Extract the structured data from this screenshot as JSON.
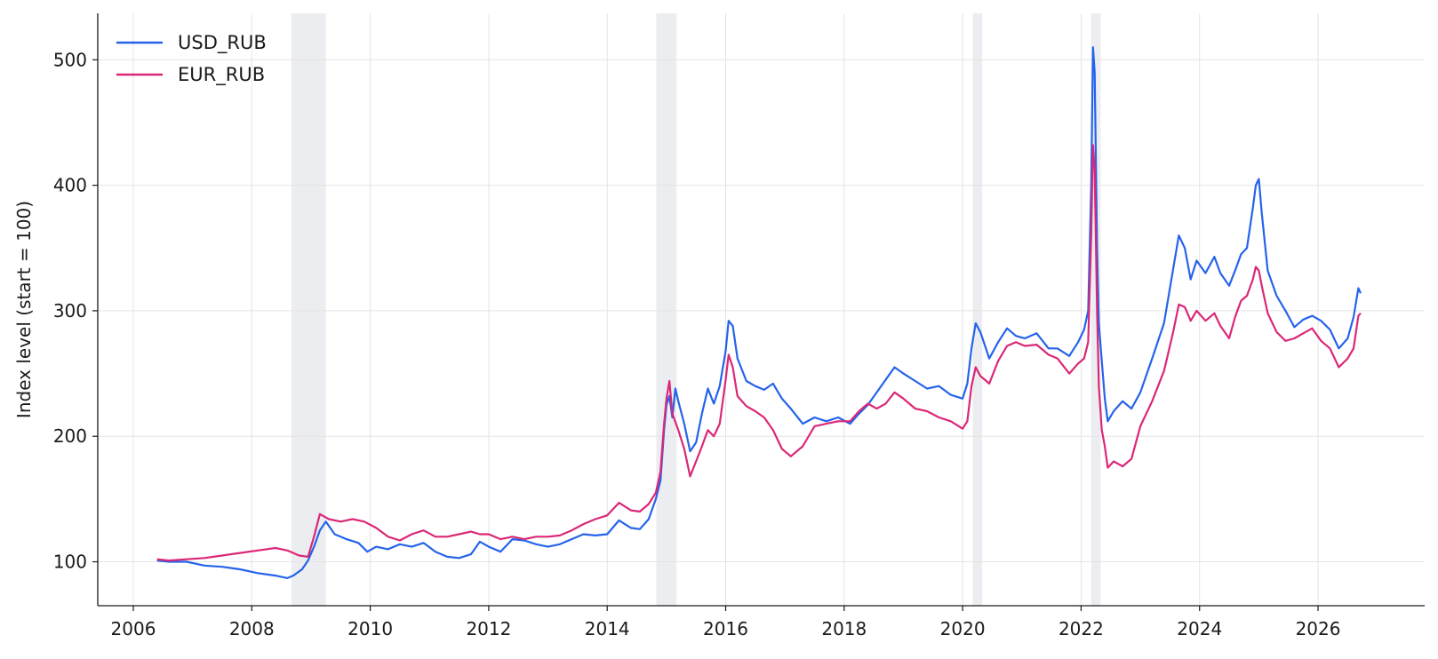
{
  "chart_data": {
    "type": "line",
    "title": "",
    "xlabel": "",
    "ylabel": "Index level (start = 100)",
    "xlim": [
      2005.4,
      2027.8
    ],
    "ylim": [
      65,
      537
    ],
    "x_ticks": [
      2006,
      2008,
      2010,
      2012,
      2014,
      2016,
      2018,
      2020,
      2022,
      2024,
      2026
    ],
    "y_ticks": [
      100,
      200,
      300,
      400,
      500
    ],
    "grid": true,
    "legend_position": "top-left",
    "shaded_periods": [
      [
        2008.67,
        2009.25
      ],
      [
        2014.83,
        2015.17
      ],
      [
        2020.17,
        2020.33
      ],
      [
        2022.17,
        2022.33
      ]
    ],
    "series": [
      {
        "name": "USD_RUB",
        "color": "#2563eb",
        "points": [
          [
            2006.4,
            101
          ],
          [
            2006.6,
            100
          ],
          [
            2006.9,
            100
          ],
          [
            2007.2,
            97
          ],
          [
            2007.5,
            96
          ],
          [
            2007.8,
            94
          ],
          [
            2008.1,
            91
          ],
          [
            2008.4,
            89
          ],
          [
            2008.6,
            87
          ],
          [
            2008.7,
            89
          ],
          [
            2008.85,
            94
          ],
          [
            2008.95,
            101
          ],
          [
            2009.05,
            112
          ],
          [
            2009.15,
            125
          ],
          [
            2009.25,
            132
          ],
          [
            2009.4,
            122
          ],
          [
            2009.6,
            118
          ],
          [
            2009.8,
            115
          ],
          [
            2009.95,
            108
          ],
          [
            2010.1,
            112
          ],
          [
            2010.3,
            110
          ],
          [
            2010.5,
            114
          ],
          [
            2010.7,
            112
          ],
          [
            2010.9,
            115
          ],
          [
            2011.1,
            108
          ],
          [
            2011.3,
            104
          ],
          [
            2011.5,
            103
          ],
          [
            2011.7,
            106
          ],
          [
            2011.85,
            116
          ],
          [
            2012.0,
            112
          ],
          [
            2012.2,
            108
          ],
          [
            2012.4,
            118
          ],
          [
            2012.6,
            117
          ],
          [
            2012.8,
            114
          ],
          [
            2013.0,
            112
          ],
          [
            2013.2,
            114
          ],
          [
            2013.4,
            118
          ],
          [
            2013.6,
            122
          ],
          [
            2013.8,
            121
          ],
          [
            2014.0,
            122
          ],
          [
            2014.2,
            133
          ],
          [
            2014.4,
            127
          ],
          [
            2014.55,
            126
          ],
          [
            2014.7,
            134
          ],
          [
            2014.82,
            150
          ],
          [
            2014.9,
            165
          ],
          [
            2014.96,
            205
          ],
          [
            2015.0,
            225
          ],
          [
            2015.05,
            232
          ],
          [
            2015.1,
            215
          ],
          [
            2015.15,
            238
          ],
          [
            2015.2,
            228
          ],
          [
            2015.3,
            210
          ],
          [
            2015.4,
            188
          ],
          [
            2015.5,
            195
          ],
          [
            2015.6,
            218
          ],
          [
            2015.7,
            238
          ],
          [
            2015.8,
            226
          ],
          [
            2015.9,
            240
          ],
          [
            2016.0,
            268
          ],
          [
            2016.05,
            292
          ],
          [
            2016.12,
            288
          ],
          [
            2016.2,
            262
          ],
          [
            2016.35,
            244
          ],
          [
            2016.5,
            240
          ],
          [
            2016.65,
            237
          ],
          [
            2016.8,
            242
          ],
          [
            2016.95,
            230
          ],
          [
            2017.1,
            222
          ],
          [
            2017.3,
            210
          ],
          [
            2017.5,
            215
          ],
          [
            2017.7,
            212
          ],
          [
            2017.9,
            215
          ],
          [
            2018.1,
            210
          ],
          [
            2018.25,
            218
          ],
          [
            2018.4,
            225
          ],
          [
            2018.55,
            235
          ],
          [
            2018.7,
            245
          ],
          [
            2018.85,
            255
          ],
          [
            2019.0,
            250
          ],
          [
            2019.2,
            244
          ],
          [
            2019.4,
            238
          ],
          [
            2019.6,
            240
          ],
          [
            2019.8,
            233
          ],
          [
            2020.0,
            230
          ],
          [
            2020.08,
            242
          ],
          [
            2020.15,
            270
          ],
          [
            2020.22,
            290
          ],
          [
            2020.3,
            283
          ],
          [
            2020.45,
            262
          ],
          [
            2020.6,
            275
          ],
          [
            2020.75,
            286
          ],
          [
            2020.9,
            280
          ],
          [
            2021.05,
            278
          ],
          [
            2021.25,
            282
          ],
          [
            2021.45,
            270
          ],
          [
            2021.6,
            270
          ],
          [
            2021.8,
            264
          ],
          [
            2021.95,
            275
          ],
          [
            2022.05,
            285
          ],
          [
            2022.12,
            300
          ],
          [
            2022.17,
            400
          ],
          [
            2022.2,
            510
          ],
          [
            2022.23,
            490
          ],
          [
            2022.27,
            350
          ],
          [
            2022.3,
            290
          ],
          [
            2022.35,
            260
          ],
          [
            2022.4,
            230
          ],
          [
            2022.45,
            212
          ],
          [
            2022.55,
            220
          ],
          [
            2022.7,
            228
          ],
          [
            2022.85,
            222
          ],
          [
            2023.0,
            235
          ],
          [
            2023.2,
            262
          ],
          [
            2023.4,
            290
          ],
          [
            2023.55,
            332
          ],
          [
            2023.65,
            360
          ],
          [
            2023.75,
            350
          ],
          [
            2023.85,
            325
          ],
          [
            2023.95,
            340
          ],
          [
            2024.1,
            330
          ],
          [
            2024.25,
            343
          ],
          [
            2024.35,
            330
          ],
          [
            2024.5,
            320
          ],
          [
            2024.6,
            332
          ],
          [
            2024.7,
            345
          ],
          [
            2024.8,
            350
          ],
          [
            2024.9,
            382
          ],
          [
            2024.95,
            400
          ],
          [
            2025.0,
            405
          ],
          [
            2025.05,
            378
          ],
          [
            2025.15,
            332
          ],
          [
            2025.3,
            312
          ],
          [
            2025.45,
            300
          ],
          [
            2025.6,
            287
          ],
          [
            2025.75,
            293
          ],
          [
            2025.9,
            296
          ],
          [
            2026.05,
            292
          ],
          [
            2026.2,
            285
          ],
          [
            2026.35,
            270
          ],
          [
            2026.5,
            278
          ],
          [
            2026.6,
            295
          ],
          [
            2026.68,
            318
          ],
          [
            2026.72,
            314
          ]
        ]
      },
      {
        "name": "EUR_RUB",
        "color": "#db2777",
        "points": [
          [
            2006.4,
            102
          ],
          [
            2006.6,
            101
          ],
          [
            2006.9,
            102
          ],
          [
            2007.2,
            103
          ],
          [
            2007.5,
            105
          ],
          [
            2007.8,
            107
          ],
          [
            2008.1,
            109
          ],
          [
            2008.4,
            111
          ],
          [
            2008.6,
            109
          ],
          [
            2008.8,
            105
          ],
          [
            2008.95,
            104
          ],
          [
            2009.05,
            120
          ],
          [
            2009.15,
            138
          ],
          [
            2009.3,
            134
          ],
          [
            2009.5,
            132
          ],
          [
            2009.7,
            134
          ],
          [
            2009.9,
            132
          ],
          [
            2010.1,
            127
          ],
          [
            2010.3,
            120
          ],
          [
            2010.5,
            117
          ],
          [
            2010.7,
            122
          ],
          [
            2010.9,
            125
          ],
          [
            2011.1,
            120
          ],
          [
            2011.3,
            120
          ],
          [
            2011.5,
            122
          ],
          [
            2011.7,
            124
          ],
          [
            2011.85,
            122
          ],
          [
            2012.0,
            122
          ],
          [
            2012.2,
            118
          ],
          [
            2012.4,
            120
          ],
          [
            2012.6,
            118
          ],
          [
            2012.8,
            120
          ],
          [
            2013.0,
            120
          ],
          [
            2013.2,
            121
          ],
          [
            2013.4,
            125
          ],
          [
            2013.6,
            130
          ],
          [
            2013.8,
            134
          ],
          [
            2014.0,
            137
          ],
          [
            2014.2,
            147
          ],
          [
            2014.4,
            141
          ],
          [
            2014.55,
            140
          ],
          [
            2014.7,
            146
          ],
          [
            2014.82,
            155
          ],
          [
            2014.9,
            172
          ],
          [
            2014.96,
            210
          ],
          [
            2015.0,
            230
          ],
          [
            2015.05,
            244
          ],
          [
            2015.1,
            218
          ],
          [
            2015.2,
            205
          ],
          [
            2015.3,
            190
          ],
          [
            2015.4,
            168
          ],
          [
            2015.5,
            180
          ],
          [
            2015.6,
            192
          ],
          [
            2015.7,
            205
          ],
          [
            2015.8,
            200
          ],
          [
            2015.9,
            210
          ],
          [
            2016.0,
            245
          ],
          [
            2016.05,
            265
          ],
          [
            2016.12,
            255
          ],
          [
            2016.2,
            232
          ],
          [
            2016.35,
            224
          ],
          [
            2016.5,
            220
          ],
          [
            2016.65,
            215
          ],
          [
            2016.8,
            205
          ],
          [
            2016.95,
            190
          ],
          [
            2017.1,
            184
          ],
          [
            2017.3,
            192
          ],
          [
            2017.5,
            208
          ],
          [
            2017.7,
            210
          ],
          [
            2017.9,
            212
          ],
          [
            2018.1,
            212
          ],
          [
            2018.25,
            220
          ],
          [
            2018.4,
            226
          ],
          [
            2018.55,
            222
          ],
          [
            2018.7,
            226
          ],
          [
            2018.85,
            235
          ],
          [
            2019.0,
            230
          ],
          [
            2019.2,
            222
          ],
          [
            2019.4,
            220
          ],
          [
            2019.6,
            215
          ],
          [
            2019.8,
            212
          ],
          [
            2020.0,
            206
          ],
          [
            2020.08,
            212
          ],
          [
            2020.15,
            240
          ],
          [
            2020.22,
            255
          ],
          [
            2020.3,
            248
          ],
          [
            2020.45,
            242
          ],
          [
            2020.6,
            260
          ],
          [
            2020.75,
            272
          ],
          [
            2020.9,
            275
          ],
          [
            2021.05,
            272
          ],
          [
            2021.25,
            273
          ],
          [
            2021.45,
            265
          ],
          [
            2021.6,
            262
          ],
          [
            2021.8,
            250
          ],
          [
            2021.95,
            258
          ],
          [
            2022.05,
            262
          ],
          [
            2022.12,
            275
          ],
          [
            2022.17,
            360
          ],
          [
            2022.2,
            432
          ],
          [
            2022.23,
            412
          ],
          [
            2022.27,
            300
          ],
          [
            2022.3,
            240
          ],
          [
            2022.35,
            205
          ],
          [
            2022.4,
            192
          ],
          [
            2022.45,
            175
          ],
          [
            2022.55,
            180
          ],
          [
            2022.7,
            176
          ],
          [
            2022.85,
            182
          ],
          [
            2023.0,
            208
          ],
          [
            2023.2,
            228
          ],
          [
            2023.4,
            252
          ],
          [
            2023.55,
            282
          ],
          [
            2023.65,
            305
          ],
          [
            2023.75,
            303
          ],
          [
            2023.85,
            292
          ],
          [
            2023.95,
            300
          ],
          [
            2024.1,
            292
          ],
          [
            2024.25,
            298
          ],
          [
            2024.35,
            288
          ],
          [
            2024.5,
            278
          ],
          [
            2024.6,
            295
          ],
          [
            2024.7,
            308
          ],
          [
            2024.8,
            312
          ],
          [
            2024.9,
            325
          ],
          [
            2024.95,
            335
          ],
          [
            2025.0,
            332
          ],
          [
            2025.05,
            320
          ],
          [
            2025.15,
            298
          ],
          [
            2025.3,
            283
          ],
          [
            2025.45,
            276
          ],
          [
            2025.6,
            278
          ],
          [
            2025.75,
            282
          ],
          [
            2025.9,
            286
          ],
          [
            2026.05,
            276
          ],
          [
            2026.2,
            270
          ],
          [
            2026.35,
            255
          ],
          [
            2026.5,
            262
          ],
          [
            2026.6,
            270
          ],
          [
            2026.68,
            296
          ],
          [
            2026.72,
            298
          ]
        ]
      }
    ]
  }
}
